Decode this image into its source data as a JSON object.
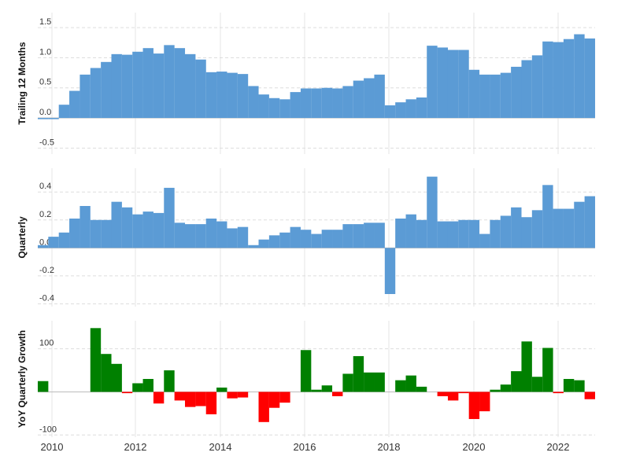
{
  "colors": {
    "bar": "#5b9bd5",
    "positive": "#008000",
    "negative": "#ff0000"
  },
  "chart_data": [
    {
      "type": "bar",
      "ylabel": "Trailing 12 Months",
      "ylim": [
        -0.6,
        1.75
      ],
      "yticks": [
        -0.5,
        0.0,
        0.5,
        1.0,
        1.5
      ],
      "ytick_labels": [
        "-0.5",
        "0.0",
        "0.5",
        "1.0",
        "1.5"
      ],
      "series": [
        {
          "values": [
            -0.02,
            -0.02,
            0.22,
            0.45,
            0.72,
            0.83,
            0.93,
            1.06,
            1.05,
            1.1,
            1.16,
            1.07,
            1.21,
            1.16,
            1.06,
            0.97,
            0.76,
            0.77,
            0.75,
            0.73,
            0.53,
            0.39,
            0.33,
            0.31,
            0.43,
            0.49,
            0.49,
            0.5,
            0.49,
            0.53,
            0.62,
            0.66,
            0.72,
            0.21,
            0.26,
            0.31,
            0.34,
            1.2,
            1.17,
            1.13,
            1.13,
            0.8,
            0.72,
            0.72,
            0.75,
            0.85,
            0.96,
            1.04,
            1.27,
            1.26,
            1.31,
            1.39,
            1.32
          ]
        }
      ]
    },
    {
      "type": "bar",
      "ylabel": "Quarterly",
      "ylim": [
        -0.42,
        0.57
      ],
      "yticks": [
        -0.4,
        -0.2,
        0.0,
        0.2,
        0.4
      ],
      "ytick_labels": [
        "-0.4",
        "-0.2",
        "0.0",
        "0.2",
        "0.4"
      ],
      "series": [
        {
          "values": [
            0.02,
            0.08,
            0.11,
            0.21,
            0.3,
            0.2,
            0.2,
            0.33,
            0.29,
            0.24,
            0.26,
            0.25,
            0.43,
            0.18,
            0.17,
            0.17,
            0.21,
            0.19,
            0.14,
            0.15,
            0.02,
            0.06,
            0.09,
            0.11,
            0.15,
            0.13,
            0.1,
            0.13,
            0.13,
            0.17,
            0.17,
            0.18,
            0.18,
            -0.33,
            0.21,
            0.24,
            0.2,
            0.51,
            0.19,
            0.19,
            0.2,
            0.2,
            0.1,
            0.2,
            0.23,
            0.29,
            0.22,
            0.27,
            0.45,
            0.28,
            0.28,
            0.33,
            0.37
          ]
        }
      ]
    },
    {
      "type": "bar",
      "ylabel": "YoY Quarterly Growth",
      "ylim": [
        -105,
        165
      ],
      "yticks": [
        -100,
        0,
        100
      ],
      "ytick_labels": [
        "-100",
        "0",
        "100"
      ],
      "series": [
        {
          "values": [
            25,
            0,
            0,
            0,
            0,
            148,
            88,
            65,
            -3,
            20,
            30,
            -27,
            50,
            -20,
            -35,
            -33,
            -52,
            10,
            -15,
            -13,
            0,
            -70,
            -37,
            -25,
            0,
            97,
            5,
            15,
            -10,
            42,
            83,
            45,
            45,
            0,
            27,
            38,
            12,
            0,
            -10,
            -20,
            -3,
            -63,
            -45,
            5,
            17,
            48,
            117,
            35,
            102,
            -3,
            30,
            27,
            -17
          ]
        }
      ]
    }
  ],
  "x_axis": {
    "labels": [
      "2010",
      "2012",
      "2014",
      "2016",
      "2018",
      "2020",
      "2022"
    ]
  }
}
